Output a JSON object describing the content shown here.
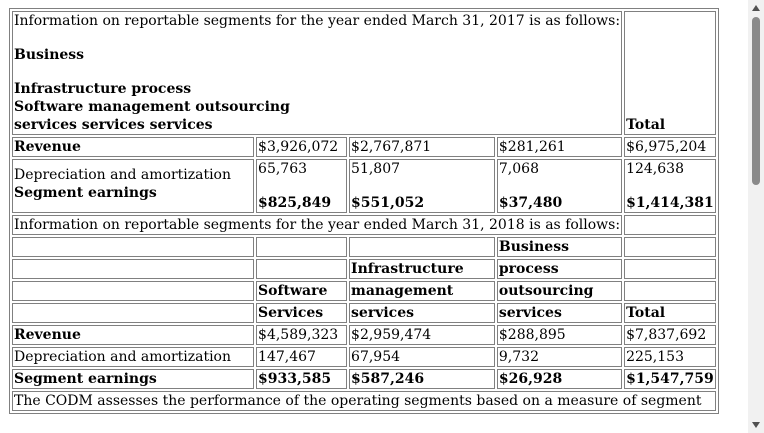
{
  "fy2017": {
    "intro": "Information on reportable segments for the year ended March 31, 2017 is as follows:",
    "header_business": "Business",
    "header_infra": "Infrastructure process",
    "header_software": "Software management outsourcing",
    "header_services": "services services services",
    "header_total": "Total",
    "revenue": {
      "label": "Revenue",
      "software": "$3,926,072",
      "infra": "$2,767,871",
      "bpo": "$281,261",
      "total": "$6,975,204"
    },
    "depreciation": {
      "label": "Depreciation and amortization",
      "software": "65,763",
      "infra": "51,807",
      "bpo": "7,068",
      "total": "124,638"
    },
    "earnings": {
      "label": "Segment earnings",
      "software": "$825,849",
      "infra": "$551,052",
      "bpo": "$37,480",
      "total": "$1,414,381"
    }
  },
  "fy2018": {
    "intro": "Information on reportable segments for the year ended March 31, 2018 is as follows:",
    "h_business": "Business",
    "h_infrastructure": "Infrastructure",
    "h_process": "process",
    "h_software": "Software",
    "h_management": "management",
    "h_outsourcing": "outsourcing",
    "h_services_sw": "Services",
    "h_services_infra": "services",
    "h_services_bpo": "services",
    "h_total": "Total",
    "revenue": {
      "label": "Revenue",
      "software": "$4,589,323",
      "infra": "$2,959,474",
      "bpo": "$288,895",
      "total": "$7,837,692"
    },
    "depreciation": {
      "label": "Depreciation and amortization",
      "software": "147,467",
      "infra": "67,954",
      "bpo": "9,732",
      "total": "225,153"
    },
    "earnings": {
      "label": "Segment earnings",
      "software": "$933,585",
      "infra": "$587,246",
      "bpo": "$26,928",
      "total": "$1,547,759"
    }
  },
  "footer_text": "The CODM assesses the performance of the operating segments based on a measure of segment"
}
